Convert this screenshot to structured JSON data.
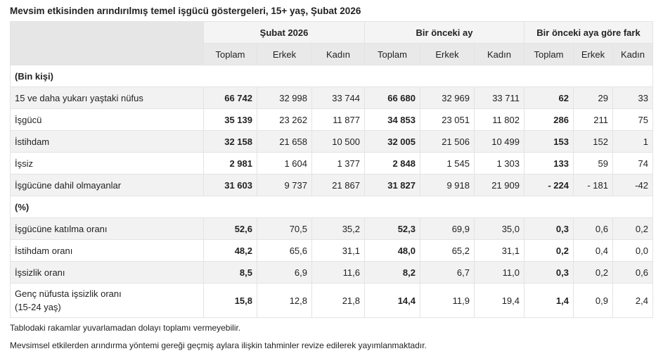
{
  "title": "Mevsim etkisinden arındırılmış temel işgücü göstergeleri, 15+ yaş, Şubat 2026",
  "groups": [
    "Şubat 2026",
    "Bir önceki ay",
    "Bir önceki aya göre fark"
  ],
  "subheaders": [
    "Toplam",
    "Erkek",
    "Kadın",
    "Toplam",
    "Erkek",
    "Kadın",
    "Toplam",
    "Erkek",
    "Kadın"
  ],
  "sections": [
    {
      "label": "(Bin kişi)",
      "rows": [
        {
          "label": "15 ve daha yukarı yaştaki nüfus",
          "values": [
            "66 742",
            "32 998",
            "33 744",
            "66 680",
            "32 969",
            "33 711",
            "62",
            "29",
            "33"
          ]
        },
        {
          "label": "İşgücü",
          "values": [
            "35 139",
            "23 262",
            "11 877",
            "34 853",
            "23 051",
            "11 802",
            "286",
            "211",
            "75"
          ]
        },
        {
          "label": "İstihdam",
          "values": [
            "32 158",
            "21 658",
            "10 500",
            "32 005",
            "21 506",
            "10 499",
            "153",
            "152",
            "1"
          ]
        },
        {
          "label": "İşsiz",
          "values": [
            "2 981",
            "1 604",
            "1 377",
            "2 848",
            "1 545",
            "1 303",
            "133",
            "59",
            "74"
          ]
        },
        {
          "label": "İşgücüne dahil olmayanlar",
          "values": [
            "31 603",
            "9 737",
            "21 867",
            "31 827",
            "9 918",
            "21 909",
            "- 224",
            "- 181",
            "-42"
          ]
        }
      ]
    },
    {
      "label": "(%)",
      "rows": [
        {
          "label": "İşgücüne katılma oranı",
          "values": [
            "52,6",
            "70,5",
            "35,2",
            "52,3",
            "69,9",
            "35,0",
            "0,3",
            "0,6",
            "0,2"
          ]
        },
        {
          "label": "İstihdam oranı",
          "values": [
            "48,2",
            "65,6",
            "31,1",
            "48,0",
            "65,2",
            "31,1",
            "0,2",
            "0,4",
            "0,0"
          ]
        },
        {
          "label": "İşsizlik oranı",
          "values": [
            "8,5",
            "6,9",
            "11,6",
            "8,2",
            "6,7",
            "11,0",
            "0,3",
            "0,2",
            "0,6"
          ]
        },
        {
          "label": "Genç nüfusta işsizlik oranı",
          "label2": "(15-24 yaş)",
          "values": [
            "15,8",
            "12,8",
            "21,8",
            "14,4",
            "11,9",
            "19,4",
            "1,4",
            "0,9",
            "2,4"
          ]
        }
      ]
    }
  ],
  "notes": [
    "Tablodaki rakamlar yuvarlamadan dolayı toplamı vermeyebilir.",
    "Mevsimsel etkilerden arındırma yöntemi gereği geçmiş aylara ilişkin tahminler revize edilerek yayımlanmaktadır."
  ]
}
